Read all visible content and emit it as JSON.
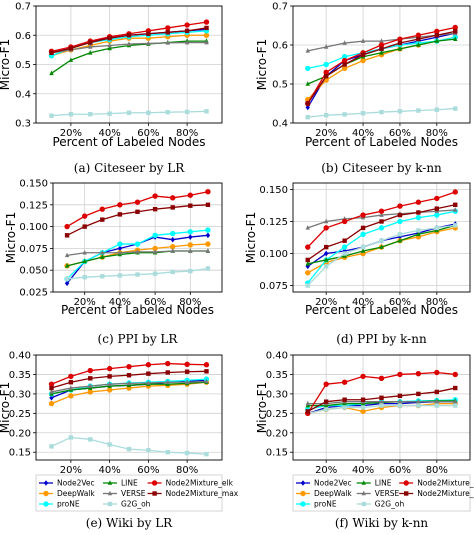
{
  "series_styles": [
    {
      "name": "Node2Vec",
      "color": "#0000cc",
      "marker": "diamond"
    },
    {
      "name": "DeepWalk",
      "color": "#ff9900",
      "marker": "circle"
    },
    {
      "name": "proNE",
      "color": "#00ffff",
      "marker": "circle"
    },
    {
      "name": "LINE",
      "color": "#008800",
      "marker": "triangle"
    },
    {
      "name": "VERSE",
      "color": "#777777",
      "marker": "triangle"
    },
    {
      "name": "G2G_oh",
      "color": "#aadcdc",
      "marker": "square"
    },
    {
      "name": "Node2Mixture_elk",
      "color": "#dd0000",
      "marker": "circle"
    },
    {
      "name": "Node2Mixture_max",
      "color": "#8b0000",
      "marker": "square"
    }
  ],
  "chart_data": [
    {
      "type": "line",
      "caption": "(a) Citeseer by LR",
      "xlabel": "Percent of Labeled Nodes",
      "ylabel": "Micro-F1",
      "x": [
        10,
        20,
        30,
        40,
        50,
        60,
        70,
        80,
        90
      ],
      "xticks": [
        20,
        40,
        60,
        80
      ],
      "xtick_labels": [
        "20%",
        "40%",
        "60%",
        "80%"
      ],
      "yticks": [
        0.3,
        0.4,
        0.5,
        0.6,
        0.7
      ],
      "ylim": [
        0.3,
        0.7
      ],
      "grid": true,
      "series": [
        {
          "name": "Node2Vec",
          "values": [
            0.54,
            0.555,
            0.58,
            0.59,
            0.6,
            0.605,
            0.61,
            0.615,
            0.62
          ]
        },
        {
          "name": "DeepWalk",
          "values": [
            0.53,
            0.55,
            0.565,
            0.58,
            0.59,
            0.59,
            0.595,
            0.6,
            0.6
          ]
        },
        {
          "name": "proNE",
          "values": [
            0.53,
            0.555,
            0.575,
            0.585,
            0.595,
            0.6,
            0.605,
            0.61,
            0.615
          ]
        },
        {
          "name": "LINE",
          "values": [
            0.47,
            0.515,
            0.54,
            0.555,
            0.565,
            0.57,
            0.575,
            0.58,
            0.58
          ]
        },
        {
          "name": "VERSE",
          "values": [
            0.54,
            0.55,
            0.56,
            0.565,
            0.57,
            0.572,
            0.574,
            0.575,
            0.575
          ]
        },
        {
          "name": "G2G_oh",
          "values": [
            0.325,
            0.33,
            0.33,
            0.332,
            0.335,
            0.335,
            0.337,
            0.338,
            0.34
          ]
        },
        {
          "name": "Node2Mixture_elk",
          "values": [
            0.545,
            0.56,
            0.58,
            0.595,
            0.605,
            0.615,
            0.625,
            0.635,
            0.645
          ]
        },
        {
          "name": "Node2Mixture_max",
          "values": [
            0.54,
            0.555,
            0.575,
            0.59,
            0.6,
            0.605,
            0.61,
            0.615,
            0.625
          ]
        }
      ]
    },
    {
      "type": "line",
      "caption": "(b) Citeseer by k-nn",
      "xlabel": "Percent of Labeled Nodes",
      "ylabel": "Micro-F1",
      "x": [
        10,
        20,
        30,
        40,
        50,
        60,
        70,
        80,
        90
      ],
      "xticks": [
        20,
        40,
        60,
        80
      ],
      "xtick_labels": [
        "20%",
        "40%",
        "60%",
        "80%"
      ],
      "yticks": [
        0.4,
        0.5,
        0.6,
        0.7
      ],
      "ylim": [
        0.4,
        0.7
      ],
      "grid": true,
      "series": [
        {
          "name": "Node2Vec",
          "values": [
            0.44,
            0.52,
            0.56,
            0.575,
            0.59,
            0.6,
            0.61,
            0.62,
            0.63
          ]
        },
        {
          "name": "DeepWalk",
          "values": [
            0.46,
            0.51,
            0.54,
            0.56,
            0.575,
            0.59,
            0.6,
            0.61,
            0.62
          ]
        },
        {
          "name": "proNE",
          "values": [
            0.54,
            0.55,
            0.57,
            0.58,
            0.59,
            0.6,
            0.605,
            0.61,
            0.62
          ]
        },
        {
          "name": "LINE",
          "values": [
            0.5,
            0.52,
            0.55,
            0.57,
            0.58,
            0.59,
            0.6,
            0.61,
            0.615
          ]
        },
        {
          "name": "VERSE",
          "values": [
            0.585,
            0.595,
            0.605,
            0.61,
            0.61,
            0.615,
            0.62,
            0.625,
            0.63
          ]
        },
        {
          "name": "G2G_oh",
          "values": [
            0.415,
            0.42,
            0.422,
            0.425,
            0.428,
            0.43,
            0.432,
            0.434,
            0.437
          ]
        },
        {
          "name": "Node2Mixture_elk",
          "values": [
            0.45,
            0.53,
            0.56,
            0.58,
            0.6,
            0.615,
            0.625,
            0.635,
            0.645
          ]
        },
        {
          "name": "Node2Mixture_max",
          "values": [
            0.45,
            0.52,
            0.55,
            0.575,
            0.59,
            0.605,
            0.615,
            0.625,
            0.635
          ]
        }
      ]
    },
    {
      "type": "line",
      "caption": "(c) PPI by LR",
      "xlabel": "Percent of Labeled Nodes",
      "ylabel": "Micro-F1",
      "x": [
        10,
        20,
        30,
        40,
        50,
        60,
        70,
        80,
        90
      ],
      "xticks": [
        20,
        40,
        60,
        80
      ],
      "xtick_labels": [
        "20%",
        "40%",
        "60%",
        "80%"
      ],
      "yticks": [
        0.025,
        0.05,
        0.075,
        0.1,
        0.125,
        0.15
      ],
      "ytick_labels": [
        "0.025",
        "0.050",
        "0.075",
        "0.100",
        "0.125",
        "0.150"
      ],
      "ylim": [
        0.025,
        0.15
      ],
      "grid": true,
      "series": [
        {
          "name": "Node2Vec",
          "values": [
            0.035,
            0.06,
            0.07,
            0.075,
            0.08,
            0.088,
            0.085,
            0.088,
            0.09
          ]
        },
        {
          "name": "DeepWalk",
          "values": [
            0.055,
            0.06,
            0.065,
            0.07,
            0.073,
            0.075,
            0.077,
            0.079,
            0.08
          ]
        },
        {
          "name": "proNE",
          "values": [
            0.04,
            0.06,
            0.07,
            0.08,
            0.08,
            0.09,
            0.092,
            0.094,
            0.096
          ]
        },
        {
          "name": "LINE",
          "values": [
            0.055,
            0.06,
            0.065,
            0.068,
            0.07,
            0.07,
            0.072,
            0.072,
            0.072
          ]
        },
        {
          "name": "VERSE",
          "values": [
            0.067,
            0.07,
            0.07,
            0.07,
            0.071,
            0.071,
            0.072,
            0.072,
            0.072
          ]
        },
        {
          "name": "G2G_oh",
          "values": [
            0.04,
            0.042,
            0.043,
            0.044,
            0.045,
            0.046,
            0.048,
            0.049,
            0.052
          ]
        },
        {
          "name": "Node2Mixture_elk",
          "values": [
            0.1,
            0.112,
            0.12,
            0.125,
            0.128,
            0.135,
            0.133,
            0.136,
            0.14
          ]
        },
        {
          "name": "Node2Mixture_max",
          "values": [
            0.09,
            0.1,
            0.108,
            0.114,
            0.117,
            0.12,
            0.122,
            0.124,
            0.125
          ]
        }
      ]
    },
    {
      "type": "line",
      "caption": "(d) PPI by k-nn",
      "xlabel": "Percent of Labeled Nodes",
      "ylabel": "Micro-F1",
      "x": [
        10,
        20,
        30,
        40,
        50,
        60,
        70,
        80,
        90
      ],
      "xticks": [
        20,
        40,
        60,
        80
      ],
      "xtick_labels": [
        "20%",
        "40%",
        "60%",
        "80%"
      ],
      "yticks": [
        0.075,
        0.1,
        0.125,
        0.15
      ],
      "ytick_labels": [
        "0.075",
        "0.100",
        "0.125",
        "0.150"
      ],
      "ylim": [
        0.07,
        0.155
      ],
      "grid": true,
      "series": [
        {
          "name": "Node2Vec",
          "values": [
            0.09,
            0.1,
            0.102,
            0.105,
            0.11,
            0.113,
            0.116,
            0.12,
            0.123
          ]
        },
        {
          "name": "DeepWalk",
          "values": [
            0.085,
            0.093,
            0.097,
            0.1,
            0.105,
            0.11,
            0.113,
            0.117,
            0.12
          ]
        },
        {
          "name": "proNE",
          "values": [
            0.077,
            0.095,
            0.105,
            0.115,
            0.12,
            0.125,
            0.128,
            0.13,
            0.133
          ]
        },
        {
          "name": "LINE",
          "values": [
            0.092,
            0.095,
            0.098,
            0.102,
            0.105,
            0.11,
            0.115,
            0.118,
            0.122
          ]
        },
        {
          "name": "VERSE",
          "values": [
            0.12,
            0.125,
            0.127,
            0.128,
            0.13,
            0.131,
            0.132,
            0.133,
            0.134
          ]
        },
        {
          "name": "G2G_oh",
          "values": [
            0.075,
            0.09,
            0.1,
            0.105,
            0.11,
            0.115,
            0.118,
            0.12,
            0.122
          ]
        },
        {
          "name": "Node2Mixture_elk",
          "values": [
            0.105,
            0.12,
            0.125,
            0.13,
            0.133,
            0.137,
            0.14,
            0.143,
            0.148
          ]
        },
        {
          "name": "Node2Mixture_max",
          "values": [
            0.095,
            0.105,
            0.11,
            0.12,
            0.125,
            0.13,
            0.132,
            0.135,
            0.138
          ]
        }
      ]
    },
    {
      "type": "line",
      "caption": "(e) Wiki by LR",
      "xlabel": "",
      "ylabel": "Micro-F1",
      "x": [
        10,
        20,
        30,
        40,
        50,
        60,
        70,
        80,
        90
      ],
      "xticks": [
        20,
        40,
        60,
        80
      ],
      "xtick_labels": [
        "20%",
        "40%",
        "60%",
        "80%"
      ],
      "yticks": [
        0.15,
        0.2,
        0.25,
        0.3,
        0.35,
        0.4
      ],
      "ytick_labels": [
        "0.15",
        "0.20",
        "0.25",
        "0.30",
        "0.35",
        "0.40"
      ],
      "ylim": [
        0.13,
        0.4
      ],
      "grid": true,
      "series": [
        {
          "name": "Node2Vec",
          "values": [
            0.29,
            0.31,
            0.315,
            0.32,
            0.322,
            0.325,
            0.33,
            0.332,
            0.335
          ]
        },
        {
          "name": "DeepWalk",
          "values": [
            0.275,
            0.295,
            0.305,
            0.31,
            0.315,
            0.32,
            0.322,
            0.325,
            0.33
          ]
        },
        {
          "name": "proNE",
          "values": [
            0.3,
            0.31,
            0.32,
            0.325,
            0.328,
            0.33,
            0.332,
            0.335,
            0.338
          ]
        },
        {
          "name": "LINE",
          "values": [
            0.3,
            0.31,
            0.315,
            0.32,
            0.322,
            0.325,
            0.325,
            0.327,
            0.33
          ]
        },
        {
          "name": "VERSE",
          "values": [
            0.305,
            0.315,
            0.32,
            0.325,
            0.327,
            0.328,
            0.33,
            0.33,
            0.332
          ]
        },
        {
          "name": "G2G_oh",
          "values": [
            0.165,
            0.188,
            0.183,
            0.17,
            0.158,
            0.155,
            0.15,
            0.148,
            0.145
          ]
        },
        {
          "name": "Node2Mixture_elk",
          "values": [
            0.325,
            0.345,
            0.36,
            0.365,
            0.37,
            0.375,
            0.378,
            0.376,
            0.375
          ]
        },
        {
          "name": "Node2Mixture_max",
          "values": [
            0.315,
            0.33,
            0.34,
            0.345,
            0.348,
            0.352,
            0.355,
            0.357,
            0.358
          ]
        }
      ]
    },
    {
      "type": "line",
      "caption": "(f) Wiki by k-nn",
      "xlabel": "",
      "ylabel": "Micro-F1",
      "x": [
        10,
        20,
        30,
        40,
        50,
        60,
        70,
        80,
        90
      ],
      "xticks": [
        20,
        40,
        60,
        80
      ],
      "xtick_labels": [
        "20%",
        "40%",
        "60%",
        "80%"
      ],
      "yticks": [
        0.15,
        0.2,
        0.25,
        0.3,
        0.35,
        0.4
      ],
      "ytick_labels": [
        "0.15",
        "0.20",
        "0.25",
        "0.30",
        "0.35",
        "0.40"
      ],
      "ylim": [
        0.13,
        0.4
      ],
      "grid": true,
      "series": [
        {
          "name": "Node2Vec",
          "values": [
            0.25,
            0.265,
            0.27,
            0.27,
            0.275,
            0.275,
            0.278,
            0.28,
            0.28
          ]
        },
        {
          "name": "DeepWalk",
          "values": [
            0.25,
            0.26,
            0.265,
            0.255,
            0.265,
            0.27,
            0.27,
            0.275,
            0.275
          ]
        },
        {
          "name": "proNE",
          "values": [
            0.26,
            0.27,
            0.27,
            0.275,
            0.28,
            0.28,
            0.282,
            0.283,
            0.285
          ]
        },
        {
          "name": "LINE",
          "values": [
            0.27,
            0.27,
            0.275,
            0.275,
            0.278,
            0.28,
            0.28,
            0.282,
            0.282
          ]
        },
        {
          "name": "VERSE",
          "values": [
            0.275,
            0.275,
            0.28,
            0.28,
            0.28,
            0.28,
            0.28,
            0.28,
            0.28
          ]
        },
        {
          "name": "G2G_oh",
          "values": [
            0.25,
            0.26,
            0.265,
            0.265,
            0.27,
            0.27,
            0.27,
            0.27,
            0.27
          ]
        },
        {
          "name": "Node2Mixture_elk",
          "values": [
            0.25,
            0.325,
            0.33,
            0.345,
            0.34,
            0.35,
            0.352,
            0.355,
            0.35
          ]
        },
        {
          "name": "Node2Mixture_max",
          "values": [
            0.255,
            0.28,
            0.285,
            0.285,
            0.29,
            0.295,
            0.3,
            0.305,
            0.315
          ]
        }
      ]
    }
  ]
}
